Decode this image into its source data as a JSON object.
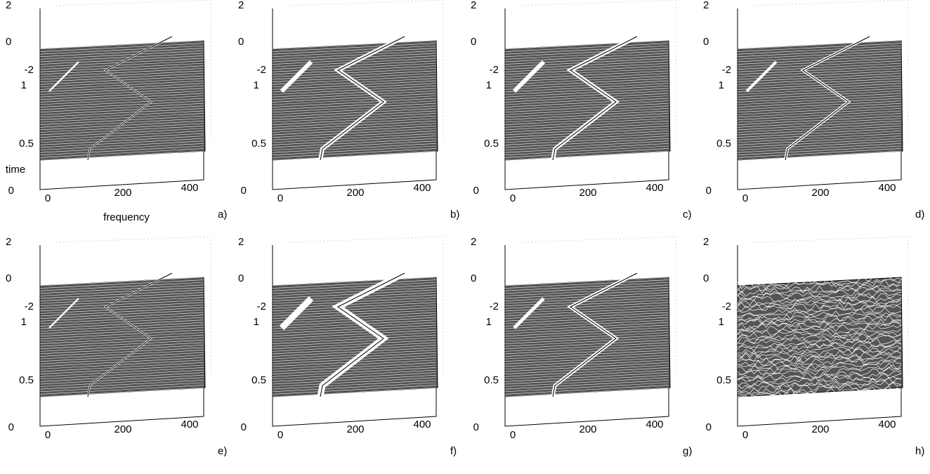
{
  "panels": [
    {
      "label": "a)",
      "z_ticks": [
        "2",
        "0",
        "-2"
      ],
      "time_ticks": [
        "1",
        "0.5",
        "0"
      ],
      "x_ticks": [
        "0",
        "200",
        "400"
      ],
      "x_label": "frequency",
      "y_label": "time"
    },
    {
      "label": "b)",
      "z_ticks": [
        "2",
        "0",
        "-2"
      ],
      "time_ticks": [
        "1",
        "0.5",
        "0"
      ],
      "x_ticks": [
        "0",
        "200",
        "400"
      ]
    },
    {
      "label": "c)",
      "z_ticks": [
        "2",
        "0",
        "-2"
      ],
      "time_ticks": [
        "1",
        "0.5",
        "0"
      ],
      "x_ticks": [
        "0",
        "200",
        "400"
      ]
    },
    {
      "label": "d)",
      "z_ticks": [
        "2",
        "0",
        "-2"
      ],
      "time_ticks": [
        "1",
        "0.5",
        "0"
      ],
      "x_ticks": [
        "0",
        "200",
        "400"
      ]
    },
    {
      "label": "e)",
      "z_ticks": [
        "2",
        "0",
        "-2"
      ],
      "time_ticks": [
        "1",
        "0.5",
        "0"
      ],
      "x_ticks": [
        "0",
        "200",
        "400"
      ]
    },
    {
      "label": "f)",
      "z_ticks": [
        "2",
        "0",
        "-2"
      ],
      "time_ticks": [
        "1",
        "0.5",
        "0"
      ],
      "x_ticks": [
        "0",
        "200",
        "400"
      ]
    },
    {
      "label": "g)",
      "z_ticks": [
        "2",
        "0",
        "-2"
      ],
      "time_ticks": [
        "1",
        "0.5",
        "0"
      ],
      "x_ticks": [
        "0",
        "200",
        "400"
      ]
    },
    {
      "label": "h)",
      "z_ticks": [
        "2",
        "0",
        "-2"
      ],
      "time_ticks": [
        "1",
        "0.5",
        "0"
      ],
      "x_ticks": [
        "0",
        "200",
        "400"
      ]
    }
  ]
}
